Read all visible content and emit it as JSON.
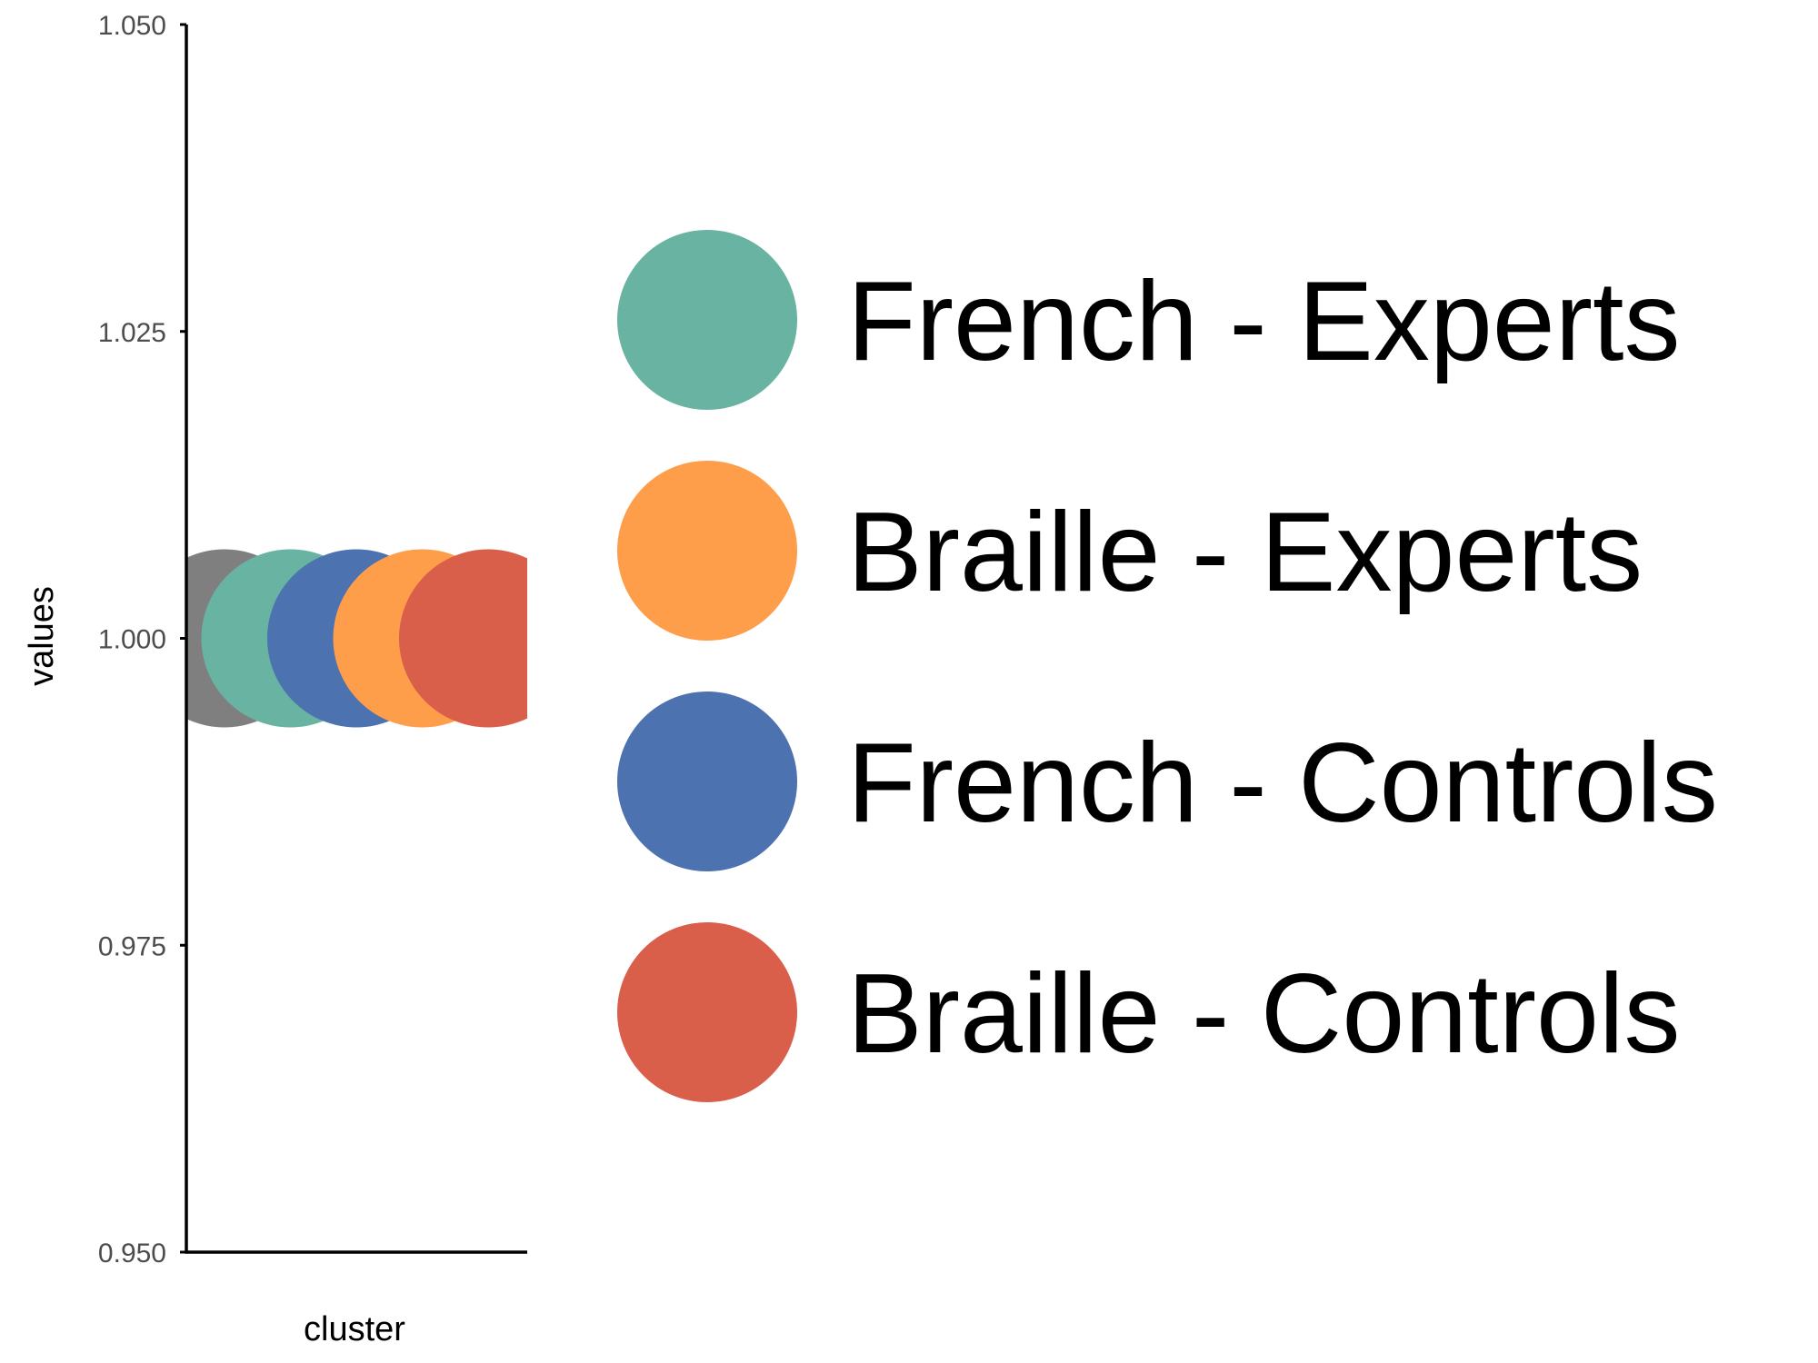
{
  "chart_data": {
    "type": "scatter",
    "xlabel": "cluster",
    "ylabel": "values",
    "ylim": [
      0.95,
      1.05
    ],
    "yticks": [
      "0.950",
      "0.975",
      "1.000",
      "1.025",
      "1.050"
    ],
    "grid": false,
    "legend_position": "right",
    "points": [
      {
        "group": "grey",
        "color": "#7f7f7f",
        "x_offset": -0.2,
        "y": 1.0
      },
      {
        "group": "French - Experts",
        "color": "#69b3a2",
        "x_offset": -0.1,
        "y": 1.0
      },
      {
        "group": "French - Controls",
        "color": "#4c72b0",
        "x_offset": 0.0,
        "y": 1.0
      },
      {
        "group": "Braille - Experts",
        "color": "#ff9e4a",
        "x_offset": 0.1,
        "y": 1.0
      },
      {
        "group": "Braille - Controls",
        "color": "#d95f4b",
        "x_offset": 0.2,
        "y": 1.0
      }
    ],
    "legend": [
      {
        "label": "French - Experts",
        "color": "#69b3a2"
      },
      {
        "label": "Braille - Experts",
        "color": "#ff9e4a"
      },
      {
        "label": "French - Controls",
        "color": "#4c72b0"
      },
      {
        "label": "Braille - Controls",
        "color": "#d95f4b"
      }
    ]
  }
}
